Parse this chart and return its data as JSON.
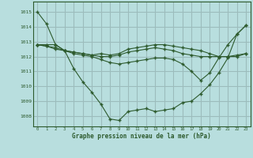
{
  "title": "Graphe pression niveau de la mer (hPa)",
  "background_color": "#b8dede",
  "grid_color": "#9cbcbc",
  "line_color": "#2d5a2d",
  "x_ticks": [
    0,
    1,
    2,
    3,
    4,
    5,
    6,
    7,
    8,
    9,
    10,
    11,
    12,
    13,
    14,
    15,
    16,
    17,
    18,
    19,
    20,
    21,
    22,
    23
  ],
  "y_ticks": [
    1008,
    1009,
    1010,
    1011,
    1012,
    1013,
    1014,
    1015
  ],
  "ylim": [
    1007.3,
    1015.7
  ],
  "xlim": [
    -0.5,
    23.5
  ],
  "series": [
    [
      1015.0,
      1014.2,
      1012.8,
      1012.4,
      1011.2,
      1010.3,
      1009.6,
      1008.8,
      1007.8,
      1007.7,
      1008.3,
      1008.4,
      1008.5,
      1008.3,
      1008.4,
      1008.5,
      1008.9,
      1009.0,
      1009.5,
      1010.1,
      1010.9,
      1011.9,
      1013.5,
      1014.1
    ],
    [
      1012.8,
      1012.8,
      1012.8,
      1012.4,
      1012.3,
      1012.2,
      1012.1,
      1012.2,
      1012.1,
      1012.2,
      1012.5,
      1012.6,
      1012.7,
      1012.8,
      1012.8,
      1012.7,
      1012.6,
      1012.5,
      1012.4,
      1012.2,
      1012.0,
      1012.0,
      1012.0,
      1012.2
    ],
    [
      1012.8,
      1012.7,
      1012.5,
      1012.4,
      1012.2,
      1012.1,
      1012.0,
      1011.8,
      1011.6,
      1011.5,
      1011.6,
      1011.7,
      1011.8,
      1011.9,
      1011.9,
      1011.8,
      1011.5,
      1011.0,
      1010.4,
      1010.9,
      1011.9,
      1012.8,
      1013.5,
      1014.1
    ],
    [
      1012.8,
      1012.7,
      1012.6,
      1012.4,
      1012.3,
      1012.2,
      1012.1,
      1012.0,
      1012.0,
      1012.1,
      1012.3,
      1012.4,
      1012.5,
      1012.6,
      1012.5,
      1012.4,
      1012.2,
      1012.1,
      1012.0,
      1012.0,
      1012.0,
      1012.0,
      1012.1,
      1012.2
    ]
  ]
}
